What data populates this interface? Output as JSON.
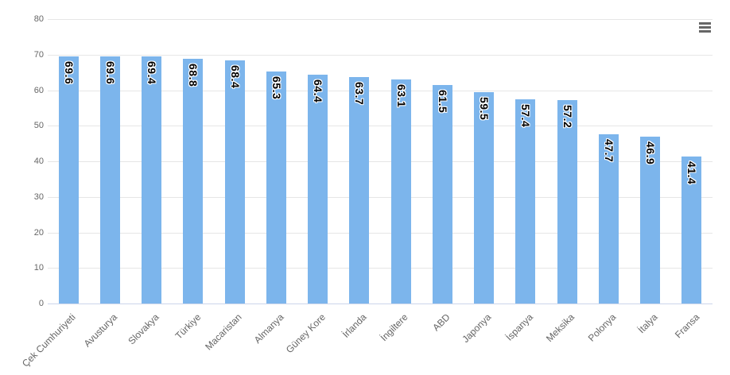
{
  "chart_data": {
    "type": "bar",
    "title": "",
    "categories": [
      "Çek Cumhuriyeti",
      "Avusturya",
      "Slovakya",
      "Türkiye",
      "Macaristan",
      "Almanya",
      "Güney Kore",
      "İrlanda",
      "İngiltere",
      "ABD",
      "Japonya",
      "İspanya",
      "Meksika",
      "Polonya",
      "İtalya",
      "Fransa"
    ],
    "values": [
      69.6,
      69.6,
      69.4,
      68.8,
      68.4,
      65.3,
      64.4,
      63.7,
      63.1,
      61.5,
      59.5,
      57.4,
      57.2,
      47.7,
      46.9,
      41.4
    ],
    "ylim": [
      0,
      80
    ],
    "ytick_interval": 10,
    "yticks": [
      0,
      10,
      20,
      30,
      40,
      50,
      60,
      70,
      80
    ],
    "grid": true,
    "legend": false,
    "value_label_rotation_deg": 90,
    "category_label_rotation_deg": -45,
    "colors": {
      "bar_fill": "#7cb5ec",
      "grid_line": "#e6e6e6",
      "axis_line": "#ccd6eb",
      "axis_label": "#666666",
      "data_label": "#000000",
      "data_label_outline": "#ffffff",
      "menu_icon": "#666666",
      "background": "#ffffff"
    }
  },
  "toolbar": {
    "context_menu_icon": "hamburger-menu-icon",
    "context_menu_tooltip": "Chart context menu"
  }
}
